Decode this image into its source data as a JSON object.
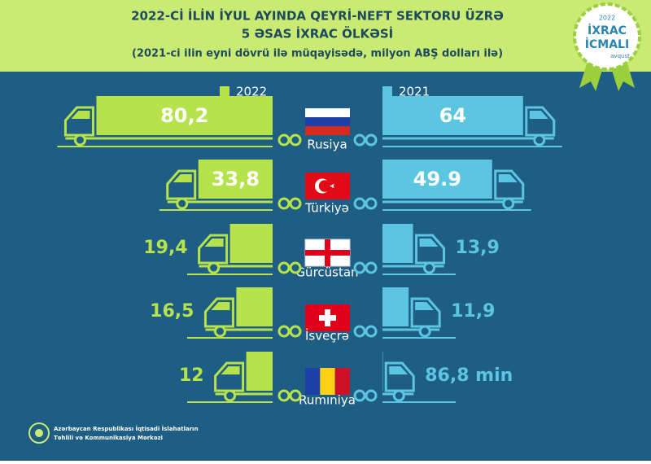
{
  "chart_data": {
    "type": "bar",
    "title": [
      "2022-Cİ İLİN İYUL AYINDA QEYRİ-NEFT SEKTORU ÜZRƏ",
      "5 ƏSAS İXRAC ÖLKƏSİ"
    ],
    "subtitle": "(2021-ci ilin eyni dövrü ilə müqayisədə, milyon ABŞ dolları ilə)",
    "categories": [
      "Rusiya",
      "Türkiyə",
      "Gürcüstan",
      "İsveçrə",
      "Rumıniya"
    ],
    "series": [
      {
        "name": "2022",
        "color": "#b6e34b",
        "values": [
          80.2,
          33.8,
          19.4,
          16.5,
          12
        ],
        "value_labels": [
          "80,2",
          "33,8",
          "19,4",
          "16,5",
          "12"
        ]
      },
      {
        "name": "2021",
        "color": "#5cc6e0",
        "values": [
          64,
          49.9,
          13.9,
          11.9,
          0.0868
        ],
        "value_labels": [
          "64",
          "49.9",
          "13,9",
          "11,9",
          "86,8 min"
        ]
      }
    ]
  },
  "badge": {
    "year": "2022",
    "line1": "İXRAC",
    "line2": "İCMALI",
    "month": "avqust"
  },
  "footer": {
    "line1": "Azərbaycan Respublikası İqtisadi İslahatların",
    "line2": "Təhlili və Kommunikasiya Mərkəzi"
  }
}
